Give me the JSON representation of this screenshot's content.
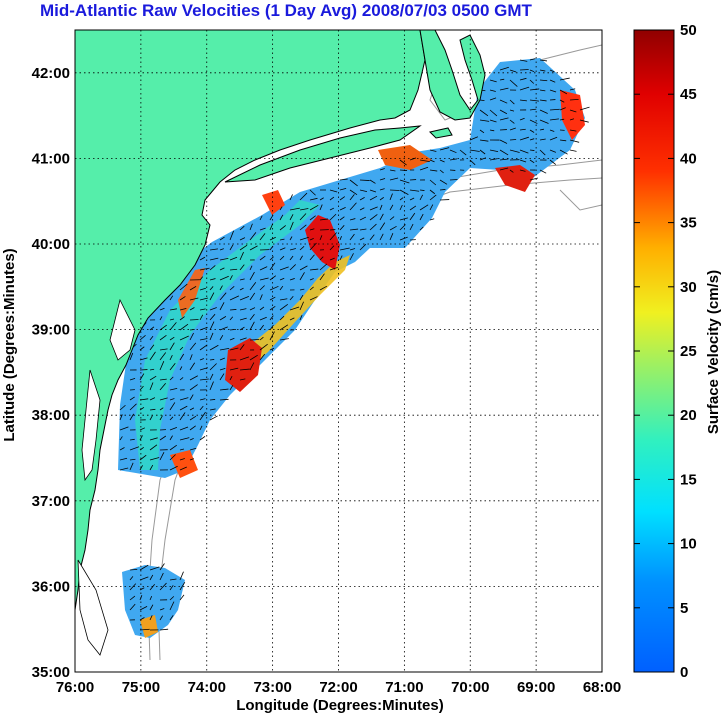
{
  "title": "Mid-Atlantic Raw Velocities (1 Day Avg) 2008/07/03 0500 GMT",
  "map": {
    "xlabel": "Longitude (Degrees:Minutes)",
    "ylabel": "Latitude (Degrees:Minutes)",
    "x_ticks": [
      "76:00",
      "75:00",
      "74:00",
      "73:00",
      "72:00",
      "71:00",
      "70:00",
      "69:00",
      "68:00"
    ],
    "y_ticks": [
      "42:00",
      "41:00",
      "40:00",
      "39:00",
      "38:00",
      "37:00",
      "36:00",
      "35:00"
    ],
    "lon_range": [
      -76,
      -68
    ],
    "lat_range": [
      35,
      42.5
    ],
    "grid": true,
    "colors": {
      "land": "#55eeaa",
      "coast": "#000000",
      "bathymetry": "#999999",
      "grid": "#000000"
    }
  },
  "colorbar": {
    "label": "Surface Velocity (cm/s)",
    "range": [
      0,
      50
    ],
    "ticks": [
      "0",
      "5",
      "10",
      "15",
      "20",
      "25",
      "30",
      "35",
      "40",
      "45",
      "50"
    ]
  }
}
